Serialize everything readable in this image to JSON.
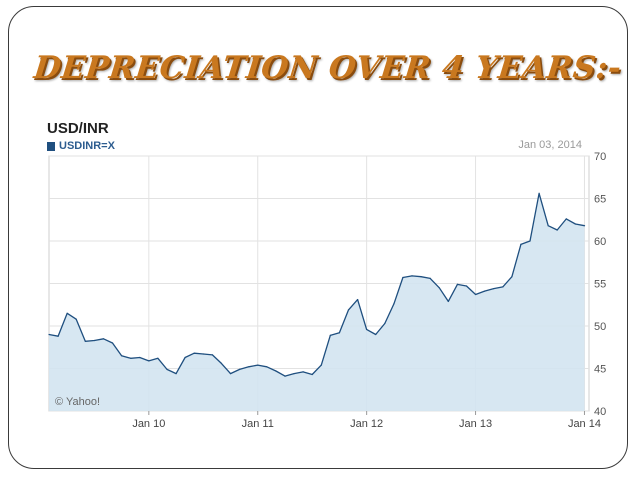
{
  "slide": {
    "title": "DEPRECIATION OVER  4 YEARS:-"
  },
  "chart_meta": {
    "symbol": "USD/INR",
    "legend_ticker": "USDINR=X",
    "date_label": "Jan 03, 2014",
    "watermark": "© Yahoo!"
  },
  "colors": {
    "line": "#1f4f7f",
    "fill": "#d3e4f1",
    "grid": "#e2e2e2",
    "title": "#c9781f"
  },
  "chart_data": {
    "type": "area",
    "title": "USD/INR",
    "xlabel": "",
    "ylabel": "",
    "x_ticks": [
      "Jan 10",
      "Jan 11",
      "Jan 12",
      "Jan 13",
      "Jan 14"
    ],
    "y_ticks": [
      40,
      45,
      50,
      55,
      60,
      65,
      70
    ],
    "ylim": [
      40,
      70
    ],
    "grid": true,
    "legend": "top-left",
    "series": [
      {
        "name": "USDINR=X",
        "x": [
          "2009-02",
          "2009-03",
          "2009-04",
          "2009-05",
          "2009-06",
          "2009-07",
          "2009-08",
          "2009-09",
          "2009-10",
          "2009-11",
          "2009-12",
          "2010-01",
          "2010-02",
          "2010-03",
          "2010-04",
          "2010-05",
          "2010-06",
          "2010-07",
          "2010-08",
          "2010-09",
          "2010-10",
          "2010-11",
          "2010-12",
          "2011-01",
          "2011-02",
          "2011-03",
          "2011-04",
          "2011-05",
          "2011-06",
          "2011-07",
          "2011-08",
          "2011-09",
          "2011-10",
          "2011-11",
          "2011-12",
          "2012-01",
          "2012-02",
          "2012-03",
          "2012-04",
          "2012-05",
          "2012-06",
          "2012-07",
          "2012-08",
          "2012-09",
          "2012-10",
          "2012-11",
          "2012-12",
          "2013-01",
          "2013-02",
          "2013-03",
          "2013-04",
          "2013-05",
          "2013-06",
          "2013-07",
          "2013-08",
          "2013-09",
          "2013-10",
          "2013-11",
          "2013-12",
          "2014-01"
        ],
        "values": [
          49.0,
          48.8,
          51.5,
          50.8,
          48.2,
          48.3,
          48.5,
          48.0,
          46.5,
          46.2,
          46.3,
          45.9,
          46.2,
          44.9,
          44.4,
          46.3,
          46.8,
          46.7,
          46.6,
          45.6,
          44.4,
          44.9,
          45.2,
          45.4,
          45.2,
          44.7,
          44.1,
          44.4,
          44.6,
          44.3,
          45.4,
          48.9,
          49.2,
          51.9,
          53.1,
          49.6,
          49.0,
          50.3,
          52.6,
          55.7,
          55.9,
          55.8,
          55.6,
          54.5,
          52.9,
          54.9,
          54.7,
          53.7,
          54.1,
          54.4,
          54.6,
          55.8,
          59.6,
          60.0,
          65.6,
          61.8,
          61.3,
          62.6,
          62.0,
          61.8
        ]
      }
    ]
  }
}
